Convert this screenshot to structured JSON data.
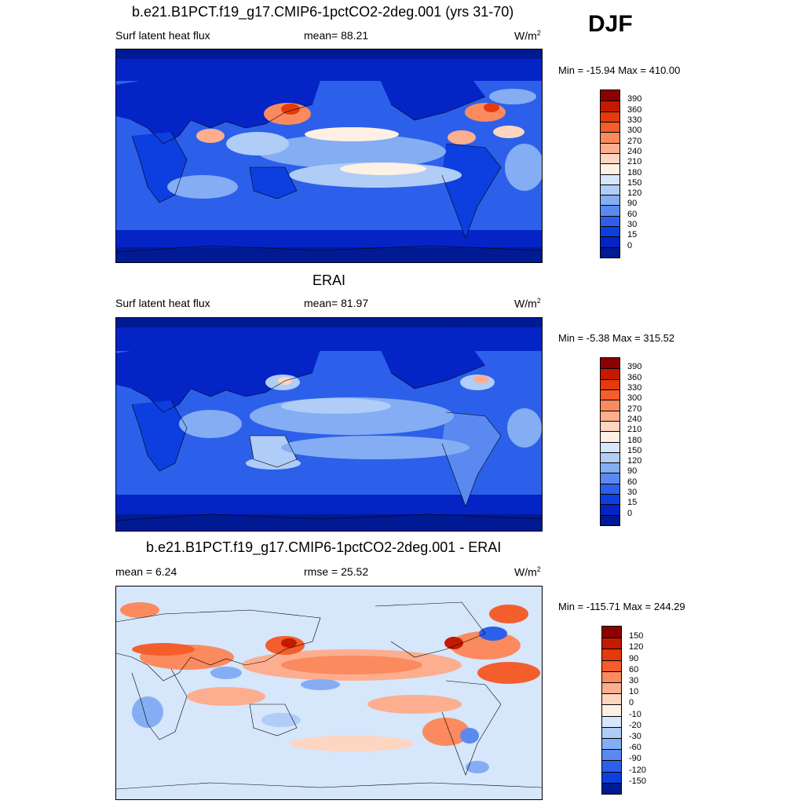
{
  "season_label": "DJF",
  "units_base": "W/m",
  "units_exp": "2",
  "panels": [
    {
      "title": "b.e21.B1PCT.f19_g17.CMIP6-1pctCO2-2deg.001 (yrs 31-70)",
      "left_label": "Surf latent heat flux",
      "center_label": "mean=  88.21",
      "minmax": "Min = -15.94 Max = 410.00",
      "map_theme": "model-absolute"
    },
    {
      "title": "ERAI",
      "left_label": "Surf latent heat flux",
      "center_label": "mean=  81.97",
      "minmax": "Min =  -5.38 Max = 315.52",
      "map_theme": "obs-absolute"
    },
    {
      "title": "b.e21.B1PCT.f19_g17.CMIP6-1pctCO2-2deg.001 - ERAI",
      "left_label": "mean =   6.24",
      "center_label": "rmse =  25.52",
      "minmax": "Min = -115.71 Max = 244.29",
      "map_theme": "difference"
    }
  ],
  "colorbar_abs": {
    "labels": [
      "390",
      "360",
      "330",
      "300",
      "270",
      "240",
      "210",
      "180",
      "150",
      "120",
      "90",
      "60",
      "30",
      "15",
      "0"
    ],
    "colors": [
      "#8b0000",
      "#c41a00",
      "#e33b0b",
      "#f45d2c",
      "#fb8a5f",
      "#fcae8f",
      "#fdd5c0",
      "#fef0e4",
      "#d6e6fb",
      "#b0cdf7",
      "#84adf3",
      "#5a8af0",
      "#2c60ea",
      "#0d3ee0",
      "#0424c6",
      "#001a93"
    ]
  },
  "colorbar_diff": {
    "labels": [
      "150",
      "120",
      "90",
      "60",
      "30",
      "10",
      "0",
      "-10",
      "-20",
      "-30",
      "-60",
      "-90",
      "-120",
      "-150"
    ],
    "colors": [
      "#8b0000",
      "#c41a00",
      "#e33b0b",
      "#f45d2c",
      "#fb8a5f",
      "#fcae8f",
      "#fdd5c0",
      "#fef0e4",
      "#d6e6fb",
      "#b0cdf7",
      "#84adf3",
      "#5a8af0",
      "#2c60ea",
      "#0d3ee0",
      "#001a93"
    ]
  }
}
